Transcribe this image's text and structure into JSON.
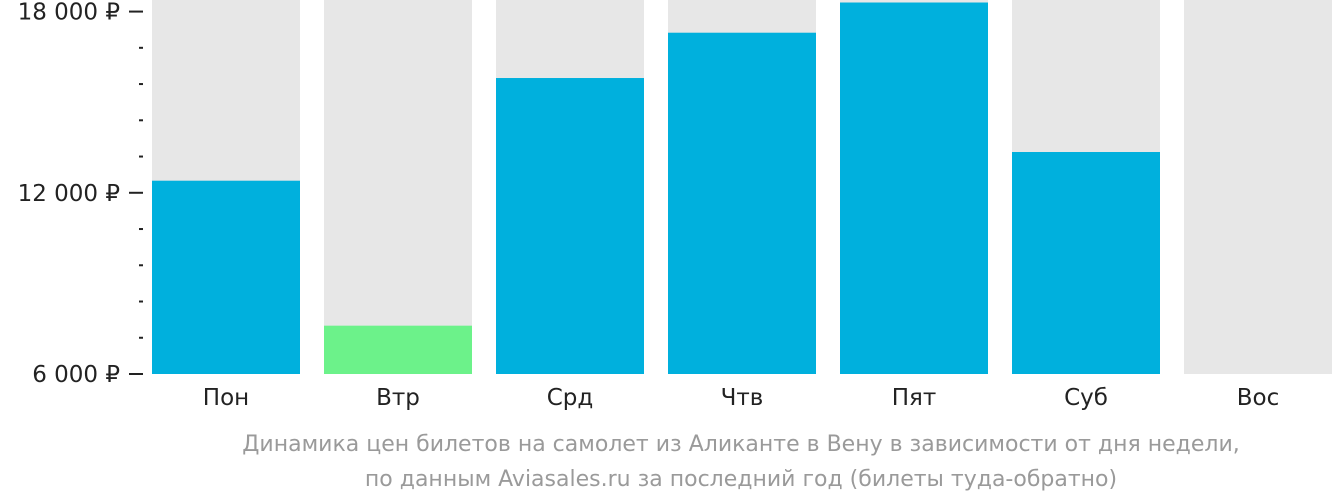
{
  "chart_data": {
    "type": "bar",
    "categories": [
      "Пон",
      "Втр",
      "Срд",
      "Чтв",
      "Пят",
      "Суб",
      "Вос"
    ],
    "values": [
      12400,
      7600,
      15800,
      17300,
      18300,
      13350,
      null
    ],
    "highlight_index": 1,
    "y_tick_labels": [
      "18 000 ₽",
      "12 000 ₽",
      "6 000 ₽"
    ],
    "y_tick_values": [
      18000,
      12000,
      6000
    ],
    "ylim": [
      6000,
      18350
    ],
    "minor_tick_step": 1200,
    "grid": false,
    "legend": "none",
    "colors": {
      "bar": "#00b0dd",
      "highlight": "#6cf28a",
      "background_column": "#e7e7e7",
      "axis_text": "#222222",
      "caption_text": "#9a9a9a"
    }
  },
  "caption": {
    "line1": "Динамика цен билетов на самолет из Аликанте в Вену в зависимости от дня недели,",
    "line2": "по данным Aviasales.ru за последний год (билеты туда-обратно)"
  }
}
